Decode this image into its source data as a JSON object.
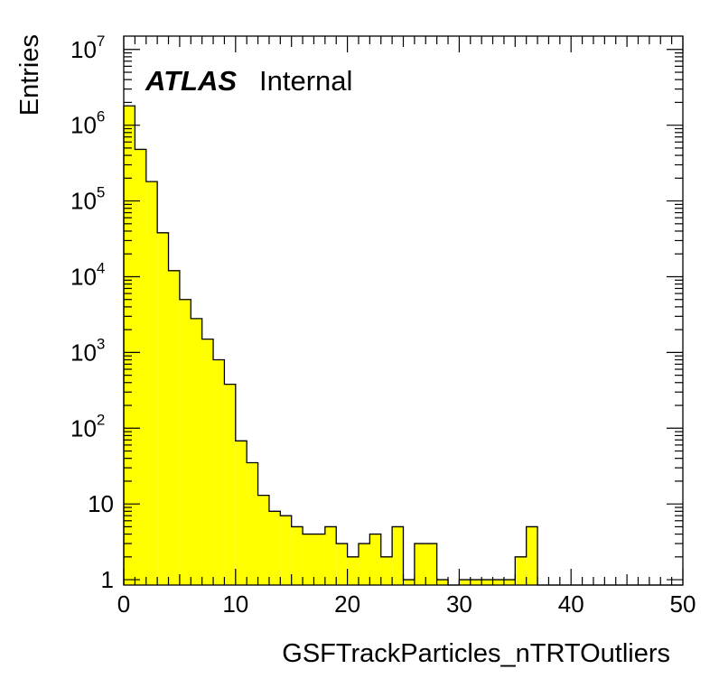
{
  "chart_data": {
    "type": "bar",
    "histogram": true,
    "xlabel": "GSFTrackParticles_nTRTOutliers",
    "ylabel": "Entries",
    "xlim": [
      0,
      50
    ],
    "ylim": [
      0.85,
      15000000
    ],
    "yscale": "log",
    "bin_width": 1,
    "bin_edges_start": [
      0,
      1,
      2,
      3,
      4,
      5,
      6,
      7,
      8,
      9,
      10,
      11,
      12,
      13,
      14,
      15,
      16,
      17,
      18,
      19,
      20,
      21,
      22,
      23,
      24,
      25,
      26,
      27,
      28,
      29,
      30,
      31,
      32,
      33,
      34,
      35,
      36,
      37,
      38,
      39,
      40,
      41,
      42,
      43,
      44,
      45,
      46,
      47,
      48,
      49
    ],
    "values": [
      1800000,
      480000,
      180000,
      38000,
      12000,
      5000,
      2800,
      1500,
      800,
      380,
      68,
      35,
      13,
      8,
      7,
      5,
      4,
      4,
      5,
      3,
      2,
      3,
      4,
      2,
      5,
      1,
      3,
      3,
      1,
      0,
      1,
      1,
      1,
      1,
      1,
      2,
      5,
      0,
      0,
      0,
      0,
      0,
      0,
      0,
      0,
      0,
      0,
      0,
      0,
      0
    ],
    "x_ticks": [
      "0",
      "10",
      "20",
      "30",
      "40",
      "50"
    ],
    "y_ticks": [
      {
        "base": "10",
        "exp": "7"
      },
      {
        "base": "10",
        "exp": "6"
      },
      {
        "base": "10",
        "exp": "5"
      },
      {
        "base": "10",
        "exp": "4"
      },
      {
        "base": "10",
        "exp": "3"
      },
      {
        "base": "10",
        "exp": "2"
      },
      {
        "base": "10",
        "exp": ""
      },
      {
        "base": "1",
        "exp": ""
      }
    ],
    "y_tick_values": [
      10000000,
      1000000,
      100000,
      10000,
      1000,
      100,
      10,
      1
    ],
    "fill_color": "#ffff00",
    "line_color": "#000000",
    "grid": false
  },
  "labels": {
    "atlas": "ATLAS",
    "internal": "Internal"
  }
}
